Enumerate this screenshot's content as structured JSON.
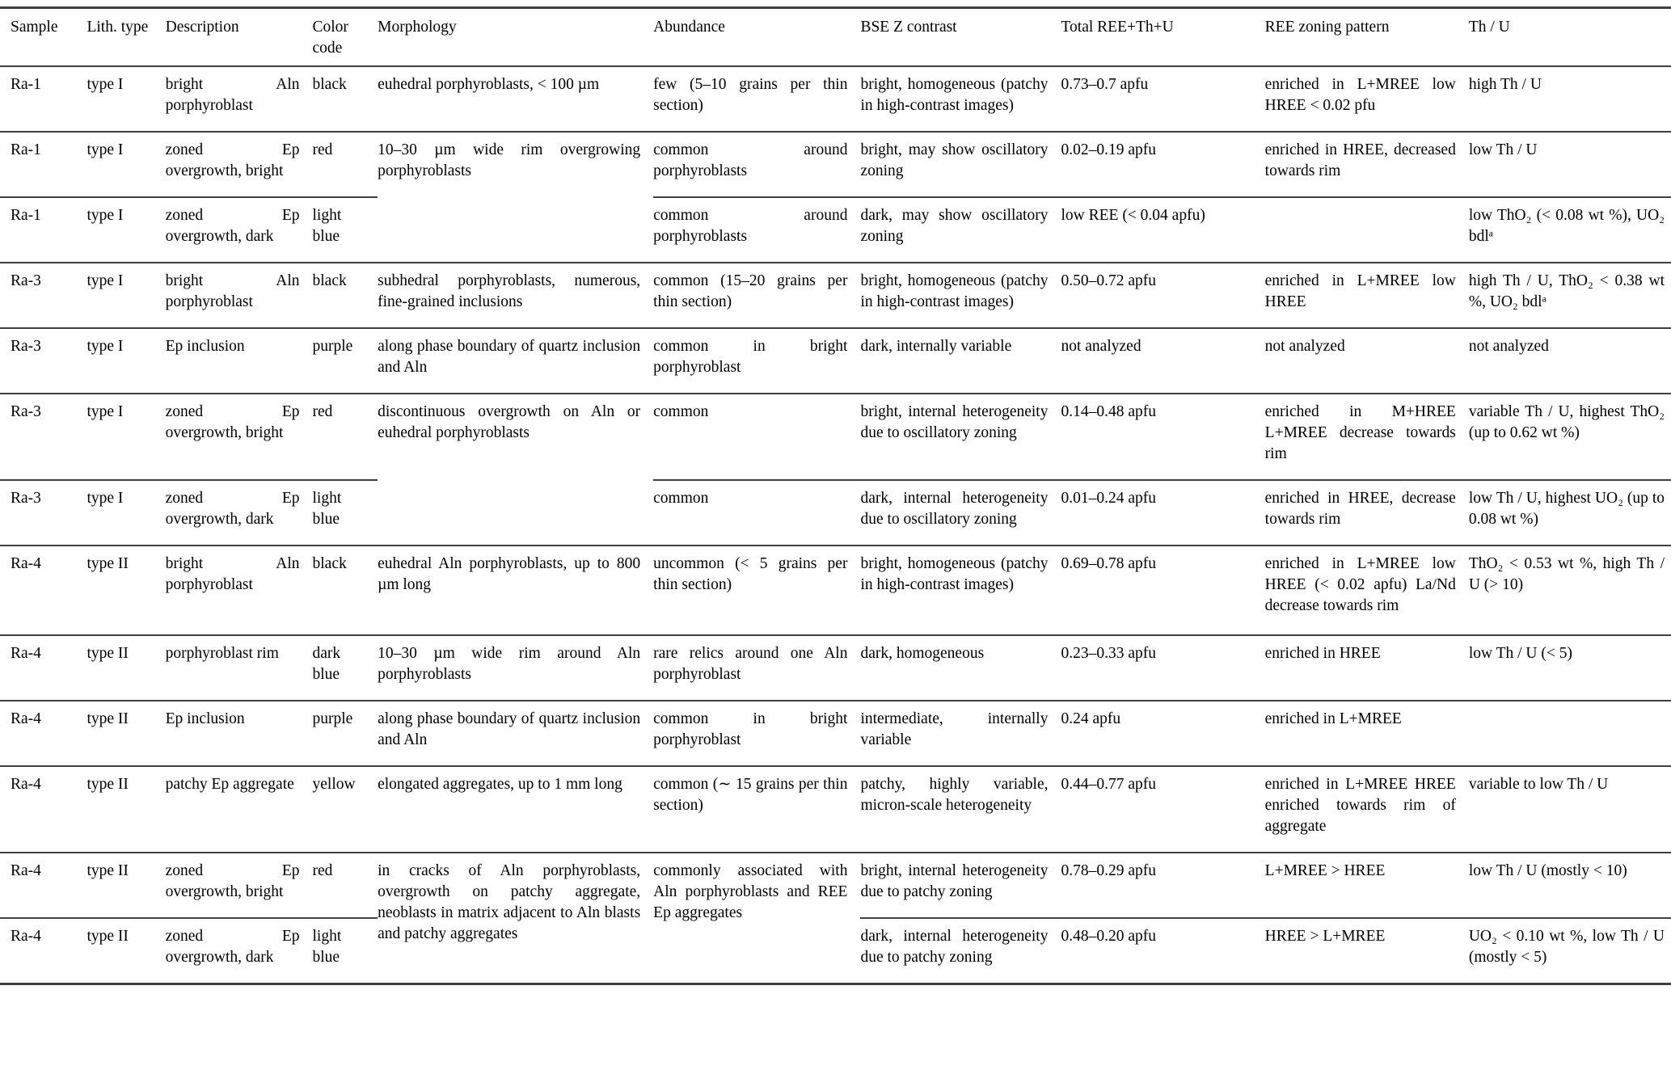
{
  "table": {
    "header": {
      "sample": "Sample",
      "lith": "Lith. type",
      "description": "Description",
      "color": "Color code",
      "morphology": "Morphology",
      "abundance": "Abundance",
      "bse": "BSE Z contrast",
      "total": "Total REE+Th+U",
      "ree": "REE zoning pattern",
      "thu": "Th / U"
    },
    "rows": [
      {
        "sample": "Ra-1",
        "lith": "type I",
        "description": "bright Aln porphyroblast",
        "color": "black",
        "morphology": "euhedral porphyroblasts, < 100 µm",
        "abundance": "few (5–10 grains per thin section)",
        "bse": "bright, homogeneous (patchy in high-contrast images)",
        "total": "0.73–0.7 apfu",
        "ree": "enriched in L+MREE low HREE < 0.02 pfu",
        "thu": "high Th / U"
      },
      {
        "sample": "Ra-1",
        "lith": "type I",
        "description": "zoned Ep overgrowth, bright",
        "color": "red",
        "morphology": "10–30 µm wide rim overgrowing porphyroblasts",
        "abundance": "common around porphyroblasts",
        "bse": "bright, may show oscillatory zoning",
        "total": "0.02–0.19 apfu",
        "ree": "enriched in HREE, decreased towards rim",
        "thu": "low Th / U"
      },
      {
        "sample": "Ra-1",
        "lith": "type I",
        "description": "zoned Ep overgrowth, dark",
        "color": "light blue",
        "abundance": "common around porphyroblasts",
        "bse": "dark, may show oscillatory zoning",
        "total": "low REE (< 0.04 apfu)",
        "ree": "",
        "thu": "low ThO₂ (< 0.08 wt %), UO₂ bdlᵃ"
      },
      {
        "sample": "Ra-3",
        "lith": "type I",
        "description": "bright Aln porphyroblast",
        "color": "black",
        "morphology": "subhedral porphyroblasts, numerous, fine-grained inclusions",
        "abundance": "common (15–20 grains per thin section)",
        "bse": "bright, homogeneous (patchy in high-contrast images)",
        "total": "0.50–0.72 apfu",
        "ree": "enriched in L+MREE low HREE",
        "thu": "high Th / U, ThO₂ < 0.38 wt %, UO₂ bdlᵃ"
      },
      {
        "sample": "Ra-3",
        "lith": "type I",
        "description": "Ep inclusion",
        "color": "purple",
        "morphology": "along phase boundary of quartz inclusion and Aln",
        "abundance": "common in bright porphyroblast",
        "bse": "dark, internally variable",
        "total": "not analyzed",
        "ree": "not analyzed",
        "thu": "not analyzed"
      },
      {
        "sample": "Ra-3",
        "lith": "type I",
        "description": "zoned Ep overgrowth, bright",
        "color": "red",
        "morphology": "discontinuous overgrowth on Aln or euhedral porphyroblasts",
        "abundance": "common",
        "bse": "bright, internal heterogeneity due to oscillatory zoning",
        "total": "0.14–0.48 apfu",
        "ree": "enriched in M+HREE L+MREE decrease towards rim",
        "thu": "variable Th / U, highest ThO₂ (up to 0.62 wt %)"
      },
      {
        "sample": "Ra-3",
        "lith": "type I",
        "description": "zoned Ep overgrowth, dark",
        "color": "light blue",
        "abundance": "common",
        "bse": "dark, internal heterogeneity due to oscillatory zoning",
        "total": "0.01–0.24 apfu",
        "ree": "enriched in HREE, decrease towards rim",
        "thu": "low Th / U, highest UO₂ (up to 0.08 wt %)"
      },
      {
        "sample": "Ra-4",
        "lith": "type II",
        "description": "bright Aln porphyroblast",
        "color": "black",
        "morphology": "euhedral Aln porphyroblasts, up to 800 µm long",
        "abundance": "uncommon (< 5 grains per thin section)",
        "bse": "bright, homogeneous (patchy in high-contrast images)",
        "total": "0.69–0.78 apfu",
        "ree": "enriched in L+MREE low HREE (< 0.02 apfu) La/Nd decrease towards rim",
        "thu": "ThO₂ < 0.53 wt %, high Th / U (> 10)"
      },
      {
        "sample": "Ra-4",
        "lith": "type II",
        "description": "porphyroblast rim",
        "color": "dark blue",
        "morphology": "10–30 µm wide rim around Aln porphyroblasts",
        "abundance": "rare relics around one Aln porphyroblast",
        "bse": "dark, homogeneous",
        "total": "0.23–0.33 apfu",
        "ree": "enriched in HREE",
        "thu": "low Th / U (< 5)"
      },
      {
        "sample": "Ra-4",
        "lith": "type II",
        "description": "Ep inclusion",
        "color": "purple",
        "morphology": "along phase boundary of quartz inclusion and Aln",
        "abundance": "common in bright porphyroblast",
        "bse": "intermediate, internally variable",
        "total": "0.24 apfu",
        "ree": "enriched in L+MREE",
        "thu": ""
      },
      {
        "sample": "Ra-4",
        "lith": "type II",
        "description": "patchy Ep aggregate",
        "color": "yellow",
        "morphology": "elongated aggregates, up to 1 mm long",
        "abundance": "common (∼ 15 grains per thin section)",
        "bse": "patchy, highly variable, micron-scale heterogeneity",
        "total": "0.44–0.77 apfu",
        "ree": "enriched in L+MREE HREE enriched towards rim of aggregate",
        "thu": "variable to low Th / U"
      },
      {
        "sample": "Ra-4",
        "lith": "type II",
        "description": "zoned Ep overgrowth, bright",
        "color": "red",
        "morphology": "in cracks of Aln porphyroblasts, overgrowth on patchy aggregate, neoblasts in matrix adjacent to Aln blasts and patchy aggregates",
        "abundance": "commonly associated with Aln porphyroblasts and REE Ep aggregates",
        "bse": "bright, internal heterogeneity due to patchy zoning",
        "total": "0.78–0.29 apfu",
        "ree": "L+MREE > HREE",
        "thu": "low Th / U (mostly < 10)"
      },
      {
        "sample": "Ra-4",
        "lith": "type II",
        "description": "zoned Ep overgrowth, dark",
        "color": "light blue",
        "bse": "dark, internal heterogeneity due to patchy zoning",
        "total": "0.48–0.20 apfu",
        "ree": "HREE > L+MREE",
        "thu": "UO₂ < 0.10 wt %, low Th / U (mostly < 5)"
      }
    ]
  }
}
